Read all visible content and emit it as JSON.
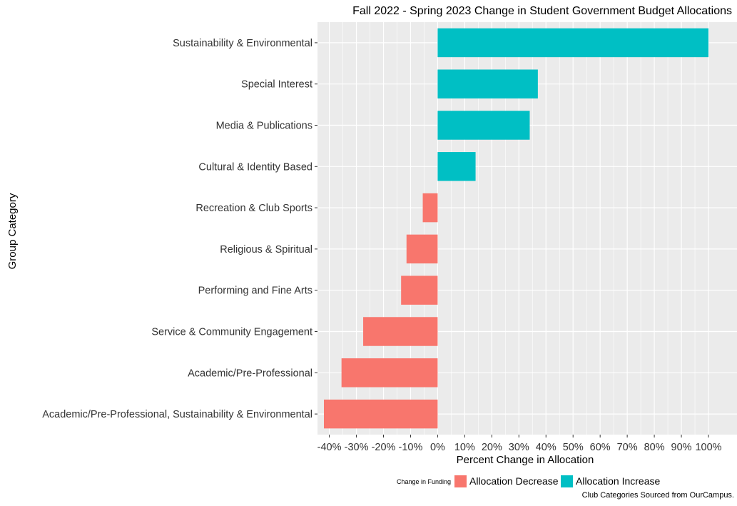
{
  "chart_data": {
    "type": "bar",
    "orientation": "horizontal",
    "title": "Fall 2022 - Spring 2023 Change in Student Government Budget Allocations",
    "xlabel": "Percent Change in Allocation",
    "ylabel": "Group Category",
    "caption": "Club Categories Sourced from OurCampus.",
    "xlim": [
      -42,
      100
    ],
    "xticks": [
      -40,
      -30,
      -20,
      -10,
      0,
      10,
      20,
      30,
      40,
      50,
      60,
      70,
      80,
      90,
      100
    ],
    "xtick_labels": [
      "-40%",
      "-30%",
      "-20%",
      "-10%",
      "0%",
      "10%",
      "20%",
      "30%",
      "40%",
      "50%",
      "60%",
      "70%",
      "80%",
      "90%",
      "100%"
    ],
    "grid": true,
    "legend": {
      "title": "Change in Funding",
      "placement": "bottom",
      "entries": [
        {
          "label": "Allocation Decrease",
          "color": "#F8766D"
        },
        {
          "label": "Allocation Increase",
          "color": "#00BFC4"
        }
      ]
    },
    "categories": [
      "Sustainability & Environmental",
      "Special Interest",
      "Media & Publications",
      "Cultural & Identity Based",
      "Recreation & Club Sports",
      "Religious & Spiritual",
      "Performing and Fine Arts",
      "Service & Community Engagement",
      "Academic/Pre-Professional",
      "Academic/Pre-Professional, Sustainability & Environmental"
    ],
    "values": [
      100,
      37,
      34,
      14,
      -5.5,
      -11.5,
      -13.5,
      -27.5,
      -35.5,
      -42
    ],
    "colors": {
      "decrease": "#F8766D",
      "increase": "#00BFC4",
      "panel_bg": "#EBEBEB",
      "grid": "#FFFFFF"
    }
  }
}
